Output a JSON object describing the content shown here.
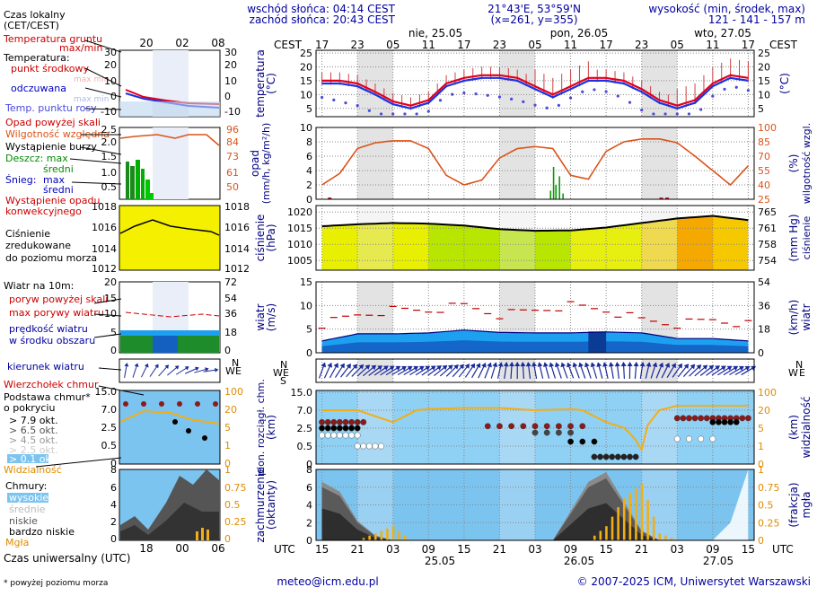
{
  "header": {
    "sunrise": "wschód słońca: 04:14 CEST",
    "sunset": "zachód słońca: 20:43 CEST",
    "coords": "21°43'E, 53°59'N",
    "grid": "(x=261, y=355)",
    "elev_title": "wysokość (min, środek, max)",
    "elev_values": "121 - 141 - 157 m",
    "cest": "CEST",
    "utc": "UTC"
  },
  "days": {
    "top": [
      "nie, 25.05",
      "pon, 26.05",
      "wto, 27.05"
    ],
    "bottom": [
      "25.05",
      "26.05",
      "27.05"
    ]
  },
  "hours": {
    "cest": [
      "17",
      "23",
      "05",
      "11",
      "17",
      "23",
      "05",
      "11",
      "17",
      "23",
      "05",
      "11",
      "17"
    ],
    "utc": [
      "15",
      "21",
      "03",
      "09",
      "15",
      "21",
      "03",
      "09",
      "15",
      "21",
      "03",
      "09",
      "15"
    ]
  },
  "legend": {
    "local_time": [
      "Czas lokalny",
      "(CET/CEST)"
    ],
    "local_ticks": [
      "20",
      "02",
      "08"
    ],
    "utc_ticks": [
      "18",
      "00",
      "06"
    ],
    "temp": {
      "ground": "Temperatura gruntu",
      "ground_max_min": "max/min",
      "temp_label": "Temperatura:",
      "mid": "punkt środkowy",
      "max_min": "max min",
      "wind_chill": "odczuwana",
      "wc_max_min": "max min",
      "dew": "Temp. punktu rosy",
      "ticks": [
        "30",
        "20",
        "10",
        "0",
        "-10"
      ]
    },
    "precip": {
      "over_scale": "Opad powyżej skali",
      "humidity": "Wilgotność względna",
      "storm": "Wystąpienie burzy",
      "rain": "Deszcz: max",
      "rain_mid": "średni",
      "snow": "Śnieg:",
      "snow_max": "max",
      "snow_mid": "średni",
      "occ1": "Wystąpienie opadu",
      "occ2": "konwekcyjnego",
      "left_ticks": [
        "2.5",
        "2.0",
        "1.5",
        "1.0",
        "0.5"
      ],
      "right_ticks": [
        "96",
        "84",
        "73",
        "61",
        "50"
      ]
    },
    "pressure": {
      "l1": "Ciśnienie",
      "l2": "zredukowane",
      "l3": "do poziomu morza",
      "ticks": [
        "1018",
        "1016",
        "1014",
        "1012"
      ]
    },
    "wind": {
      "title": "Wiatr na 10m:",
      "gust_over": "poryw powyżej skali",
      "gust_max": "max porywy wiatru",
      "speed1": "prędkość wiatru",
      "speed2": "w środku obszaru",
      "left_ticks": [
        "20",
        "15",
        "10",
        "5",
        "0"
      ],
      "right_ticks": [
        "72",
        "54",
        "36",
        "18",
        "0"
      ]
    },
    "wind_dir": "kierunek wiatru",
    "clouds": {
      "tops": "Wierzchołek chmur",
      "base1": "Podstawa chmur*",
      "base2": "o pokryciu",
      "okt": [
        "> 7.9 okt.",
        "> 6.5 okt.",
        "> 4.5 okt.",
        "> 2.5 okt.",
        "> 0.1 okt."
      ],
      "visibility": "Widzialność",
      "left_ticks": [
        "15.0",
        "7.0",
        "2.5",
        "0.5",
        "0"
      ],
      "right_ticks": [
        "100",
        "20",
        "5",
        "1",
        "0"
      ]
    },
    "cover": {
      "title": "Chmury:",
      "high": "wysokie",
      "mid": "średnie",
      "low": "niskie",
      "vlow": "bardzo niskie",
      "fog": "Mgła",
      "left_ticks": [
        "8",
        "6",
        "4",
        "2",
        "0"
      ],
      "right_ticks": [
        "1",
        "0.75",
        "0.5",
        "0.25",
        "0"
      ]
    },
    "utc_label": "Czas uniwersalny (UTC)",
    "footnote": "* powyżej poziomu morza"
  },
  "axes": {
    "temp": {
      "title": "temperatura",
      "unit": "(°C)",
      "ticks": [
        "25",
        "20",
        "15",
        "10",
        "5"
      ]
    },
    "precip": {
      "title": "opad",
      "unit": "(mm/h, kg/m²/h)",
      "right_title": "wilgotność wzgl.",
      "right_unit": "(%)",
      "ticks": [
        "10",
        "8",
        "6",
        "4",
        "2",
        "0"
      ],
      "right_ticks": [
        "100",
        "85",
        "70",
        "55",
        "40",
        "25"
      ]
    },
    "pressure": {
      "title": "ciśnienie",
      "unit": "(hPa)",
      "right_title": "ciśnienie",
      "right_unit": "(mm Hg)",
      "ticks": [
        "1020",
        "1015",
        "1010",
        "1005"
      ],
      "right_ticks": [
        "765",
        "761",
        "758",
        "754"
      ]
    },
    "wind": {
      "title": "wiatr",
      "unit": "(m/s)",
      "right_title": "wiatr",
      "right_unit": "(km/h)",
      "ticks": [
        "15",
        "10",
        "5",
        "0"
      ],
      "right_ticks": [
        "54",
        "36",
        "18",
        "0"
      ]
    },
    "wind_dir": {
      "ticks": [
        "N",
        "W",
        "E",
        "S"
      ]
    },
    "cloud": {
      "title": "pion. rozciągł. chm.",
      "unit": "(km)",
      "right_title": "widzialność",
      "right_unit": "(km)",
      "ticks": [
        "15.0",
        "7.0",
        "2.5",
        "0.5",
        "0"
      ],
      "right_ticks": [
        "100",
        "20",
        "5",
        "1",
        "0"
      ]
    },
    "cover": {
      "title": "zachmurzenie",
      "unit": "(oktanty)",
      "right_title": "mgła",
      "right_unit": "(frakcja)",
      "ticks": [
        "8",
        "6",
        "4",
        "2",
        "0"
      ],
      "right_ticks": [
        "1",
        "0.75",
        "0.5",
        "0.25",
        "0"
      ]
    }
  },
  "footer": {
    "email": "meteo@icm.edu.pl",
    "copyright": "© 2007-2025 ICM, Uniwersytet Warszawski"
  },
  "colors": {
    "night": "#e3e3e3",
    "temp_red": "#e0001c",
    "temp_blue": "#1c32e0",
    "humidity": "#d9541a",
    "pressure_line": "#000000",
    "wind_blue": "#1ea0f0",
    "wind_dark": "#0a3c96",
    "sky": "#8fd0f5",
    "fog": "#f2ae16"
  },
  "chart_data": [
    {
      "type": "line",
      "title": "temperatura",
      "ylabel": "(°C)",
      "ylim": [
        2,
        26
      ],
      "x_hours": [
        0,
        3,
        6,
        9,
        12,
        15,
        18,
        21,
        24,
        27,
        30,
        33,
        36,
        39,
        42,
        45,
        48,
        51,
        54,
        57,
        60,
        63,
        66,
        69,
        72
      ],
      "series": [
        {
          "name": "temperatura (punkt środkowy)",
          "values": [
            15,
            15,
            14,
            11,
            7.5,
            6,
            8,
            14,
            16,
            17,
            17,
            16,
            13,
            10,
            13,
            16,
            16,
            15,
            12,
            8,
            6,
            8,
            14,
            17,
            16
          ]
        },
        {
          "name": "temperatura odczuwana",
          "values": [
            14,
            14,
            13,
            10,
            6.5,
            5,
            7,
            13,
            15,
            16,
            16,
            15,
            12,
            9,
            12,
            15,
            15,
            14,
            11,
            7,
            5,
            7,
            13,
            16,
            15
          ]
        }
      ]
    },
    {
      "type": "line",
      "title": "wilgotność wzgl.",
      "ylabel": "(%)",
      "ylim": [
        25,
        100
      ],
      "x_hours": [
        0,
        3,
        6,
        9,
        12,
        15,
        18,
        21,
        24,
        27,
        30,
        33,
        36,
        39,
        42,
        45,
        48,
        51,
        54,
        57,
        60,
        63,
        66,
        69,
        72
      ],
      "values": [
        40,
        52,
        78,
        84,
        86,
        86,
        78,
        50,
        40,
        45,
        68,
        78,
        80,
        78,
        50,
        46,
        75,
        85,
        88,
        88,
        84,
        70,
        55,
        40,
        60
      ]
    },
    {
      "type": "line",
      "title": "ciśnienie",
      "ylabel": "(hPa)",
      "ylim": [
        1002,
        1022
      ],
      "x_hours": [
        0,
        6,
        12,
        18,
        24,
        30,
        36,
        42,
        48,
        54,
        60,
        66,
        72
      ],
      "values": [
        1015.6,
        1016.2,
        1016.6,
        1016.4,
        1015.8,
        1014.7,
        1014.2,
        1014.3,
        1015.2,
        1016.6,
        1018.0,
        1018.8,
        1017.5
      ]
    },
    {
      "type": "area",
      "title": "wiatr",
      "ylabel": "(m/s)",
      "ylim": [
        0,
        15
      ],
      "x_hours": [
        0,
        6,
        12,
        18,
        24,
        30,
        36,
        42,
        48,
        54,
        60,
        66,
        72
      ],
      "series": [
        {
          "name": "prędkość wiatru",
          "values": [
            2.5,
            4,
            4,
            4.2,
            4.8,
            4.3,
            4.2,
            4.2,
            4.4,
            4.2,
            3,
            3,
            2.5
          ]
        },
        {
          "name": "max porywy wiatru",
          "values": [
            6,
            8,
            9,
            9,
            10,
            8,
            9,
            10,
            9,
            7,
            6,
            7,
            6
          ]
        }
      ]
    },
    {
      "type": "line",
      "title": "widzialność",
      "ylabel": "(km)",
      "ylim": [
        0,
        100
      ],
      "x_hours": [
        0,
        6,
        12,
        18,
        24,
        30,
        36,
        42,
        48,
        54,
        60,
        66,
        72
      ],
      "values": [
        20,
        20,
        10,
        25,
        30,
        30,
        20,
        25,
        10,
        0.8,
        40,
        40,
        40
      ]
    },
    {
      "type": "area",
      "title": "zachmurzenie",
      "ylabel": "(oktanty)",
      "ylim": [
        0,
        8
      ],
      "x_hours": [
        0,
        3,
        6,
        9,
        12,
        15,
        18,
        21,
        24,
        27,
        30,
        33,
        36,
        39,
        42,
        45,
        48,
        51,
        54,
        57,
        60,
        63,
        66,
        69,
        72
      ],
      "series": [
        {
          "name": "niskie",
          "values": [
            6,
            5,
            2,
            0.5,
            0,
            0,
            0,
            0,
            0,
            0,
            0,
            0,
            0,
            0,
            3,
            6,
            7,
            4,
            1,
            0,
            0,
            0,
            0,
            0,
            0
          ]
        },
        {
          "name": "wysokie",
          "values": [
            0,
            0,
            0,
            0,
            0,
            0,
            0,
            0,
            0,
            0,
            0,
            0,
            0,
            0,
            1,
            3,
            2,
            1,
            0,
            0,
            0,
            0,
            0,
            2,
            8
          ]
        },
        {
          "name": "mgła",
          "values": [
            0,
            0,
            0,
            0.1,
            0.2,
            0,
            0,
            0,
            0,
            0,
            0,
            0,
            0,
            0,
            0,
            0,
            0.2,
            0.6,
            0.8,
            0.1,
            0,
            0,
            0,
            0,
            0
          ]
        }
      ]
    }
  ]
}
